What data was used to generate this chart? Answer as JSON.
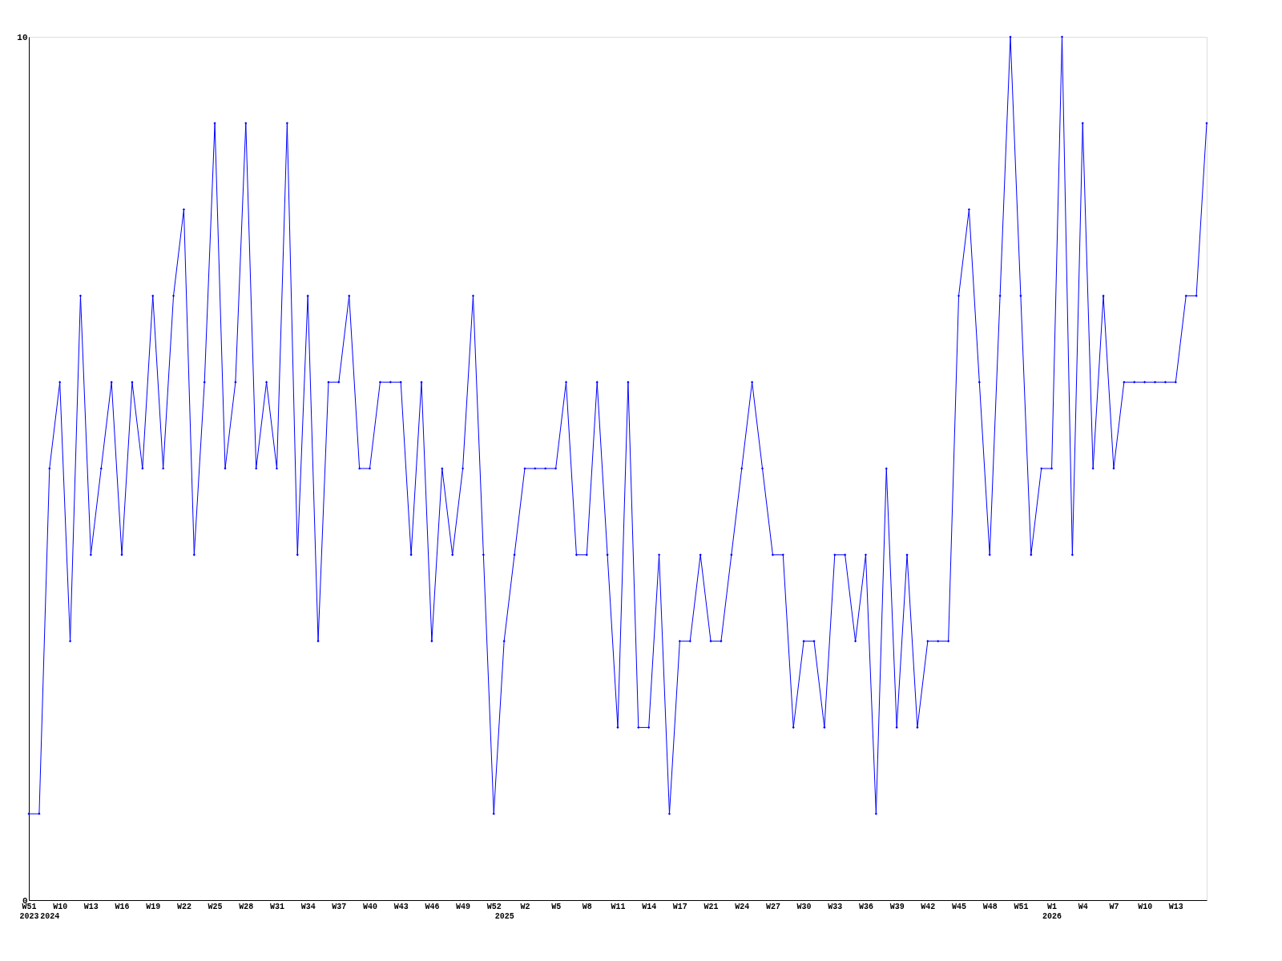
{
  "chart_data": {
    "type": "line",
    "categories": [
      "W51\n2023",
      null,
      "\n2024",
      "W10",
      null,
      null,
      "W13",
      null,
      null,
      "W16",
      null,
      null,
      "W19",
      null,
      null,
      "W22",
      null,
      null,
      "W25",
      null,
      null,
      "W28",
      null,
      null,
      "W31",
      null,
      null,
      "W34",
      null,
      null,
      "W37",
      null,
      null,
      "W40",
      null,
      null,
      "W43",
      null,
      null,
      "W46",
      null,
      null,
      "W49",
      null,
      null,
      "W52",
      "\n2025",
      null,
      "W2",
      null,
      null,
      "W5",
      null,
      null,
      "W8",
      null,
      null,
      "W11",
      null,
      null,
      "W14",
      null,
      null,
      "W17",
      null,
      null,
      "W21",
      null,
      null,
      "W24",
      null,
      null,
      "W27",
      null,
      null,
      "W30",
      null,
      null,
      "W33",
      null,
      null,
      "W36",
      null,
      null,
      "W39",
      null,
      null,
      "W42",
      null,
      null,
      "W45",
      null,
      null,
      "W48",
      null,
      null,
      "W51",
      null,
      null,
      "W1\n2026",
      null,
      null,
      "W4",
      null,
      null,
      "W7",
      null,
      null,
      "W10",
      null,
      null,
      "W13",
      null,
      null,
      null
    ],
    "series": [
      {
        "color": "#0000ff",
        "values": [
          1,
          1,
          5,
          6,
          3,
          7,
          4,
          5,
          6,
          4,
          6,
          5,
          7,
          5,
          7,
          8,
          4,
          6,
          9,
          5,
          6,
          9,
          5,
          6,
          5,
          9,
          4,
          7,
          3,
          6,
          6,
          7,
          5,
          5,
          6,
          6,
          6,
          4,
          6,
          3,
          5,
          4,
          5,
          7,
          4,
          1,
          3,
          4,
          5,
          5,
          5,
          5,
          6,
          4,
          4,
          6,
          4,
          2,
          6,
          2,
          2,
          4,
          1,
          3,
          3,
          4,
          3,
          3,
          4,
          5,
          6,
          5,
          4,
          4,
          2,
          3,
          3,
          2,
          4,
          4,
          3,
          4,
          1,
          5,
          2,
          4,
          2,
          3,
          3,
          3,
          7,
          8,
          6,
          4,
          7,
          10,
          7,
          4,
          5,
          5,
          10,
          4,
          9,
          5,
          7,
          5,
          6,
          6,
          6,
          6,
          6,
          6,
          7,
          7,
          9
        ]
      }
    ],
    "ylim": [
      0,
      10
    ],
    "yticks": [
      0,
      10
    ],
    "marker": "diamond",
    "line_style": "solid"
  }
}
